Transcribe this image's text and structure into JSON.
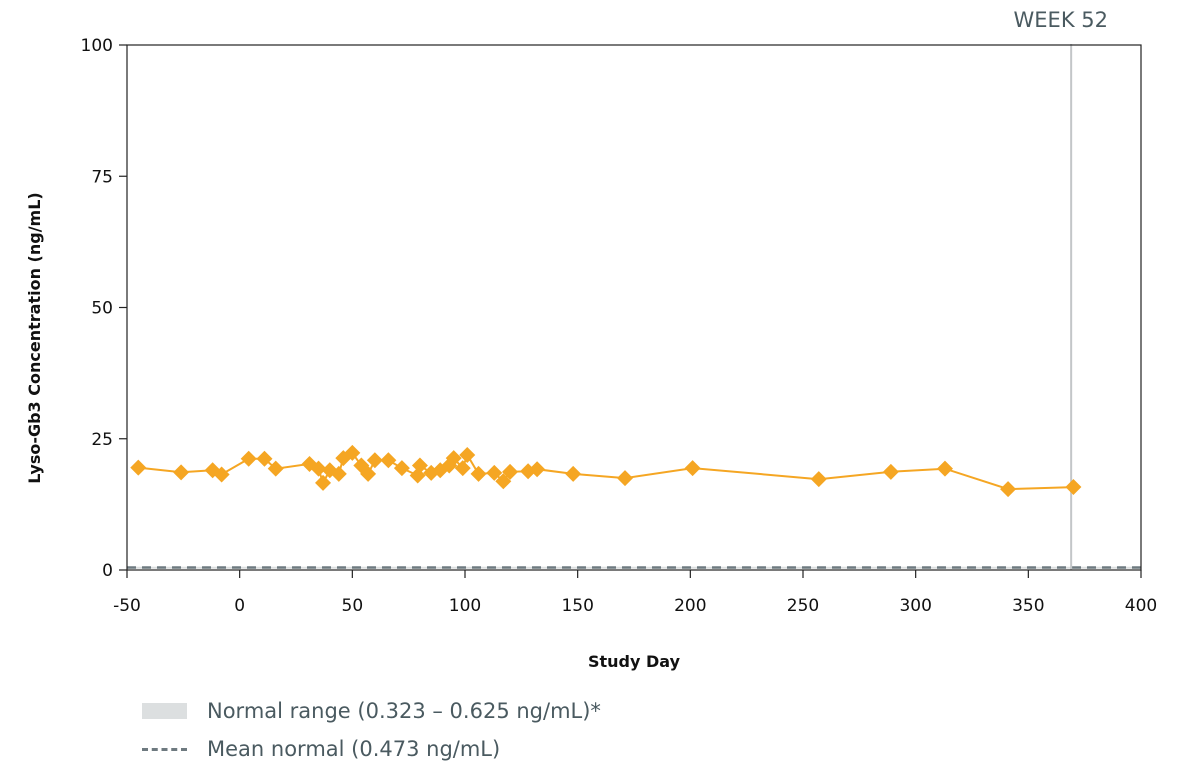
{
  "chart_data": {
    "type": "line",
    "xlabel": "Study Day",
    "ylabel": "Lyso-Gb3 Concentration (ng/mL)",
    "xlim": [
      -50,
      400
    ],
    "ylim": [
      0,
      100
    ],
    "xticks": [
      "-50",
      "0",
      "50",
      "100",
      "150",
      "200",
      "250",
      "300",
      "350",
      "400"
    ],
    "yticks": [
      "0",
      "25",
      "50",
      "75",
      "100"
    ],
    "series": [
      {
        "name": "",
        "color": "#f5a623",
        "marker": "diamond",
        "points": [
          [
            -45,
            19.5
          ],
          [
            -26,
            18.6
          ],
          [
            -12,
            19.0
          ],
          [
            -8,
            18.2
          ],
          [
            4,
            21.2
          ],
          [
            11,
            21.2
          ],
          [
            16,
            19.3
          ],
          [
            31,
            20.2
          ],
          [
            35,
            19.3
          ],
          [
            37,
            16.6
          ],
          [
            40,
            19.0
          ],
          [
            44,
            18.3
          ],
          [
            46,
            21.3
          ],
          [
            50,
            22.3
          ],
          [
            54,
            19.9
          ],
          [
            57,
            18.3
          ],
          [
            60,
            20.9
          ],
          [
            66,
            20.9
          ],
          [
            72,
            19.4
          ],
          [
            79,
            18.0
          ],
          [
            80,
            19.9
          ],
          [
            85,
            18.5
          ],
          [
            89,
            19.0
          ],
          [
            93,
            19.9
          ],
          [
            95,
            21.3
          ],
          [
            99,
            19.4
          ],
          [
            101,
            21.9
          ],
          [
            106,
            18.3
          ],
          [
            113,
            18.5
          ],
          [
            117,
            16.9
          ],
          [
            120,
            18.7
          ],
          [
            128,
            18.8
          ],
          [
            132,
            19.2
          ],
          [
            148,
            18.3
          ],
          [
            171,
            17.5
          ],
          [
            201,
            19.4
          ],
          [
            257,
            17.3
          ],
          [
            289,
            18.7
          ],
          [
            313,
            19.3
          ],
          [
            341,
            15.4
          ],
          [
            370,
            15.8
          ]
        ]
      }
    ],
    "normal_range": [
      0.323,
      0.625
    ],
    "mean_normal": 0.473,
    "reference_line": {
      "x": 369,
      "label": "WEEK 52"
    },
    "legend": [
      {
        "label": "Normal range (0.323 – 0.625 ng/mL)*",
        "swatch": "gray-band"
      },
      {
        "label": "Mean normal (0.473 ng/mL)",
        "swatch": "dashed-line"
      }
    ],
    "legend_placement": "bottom-left",
    "grid": false
  }
}
